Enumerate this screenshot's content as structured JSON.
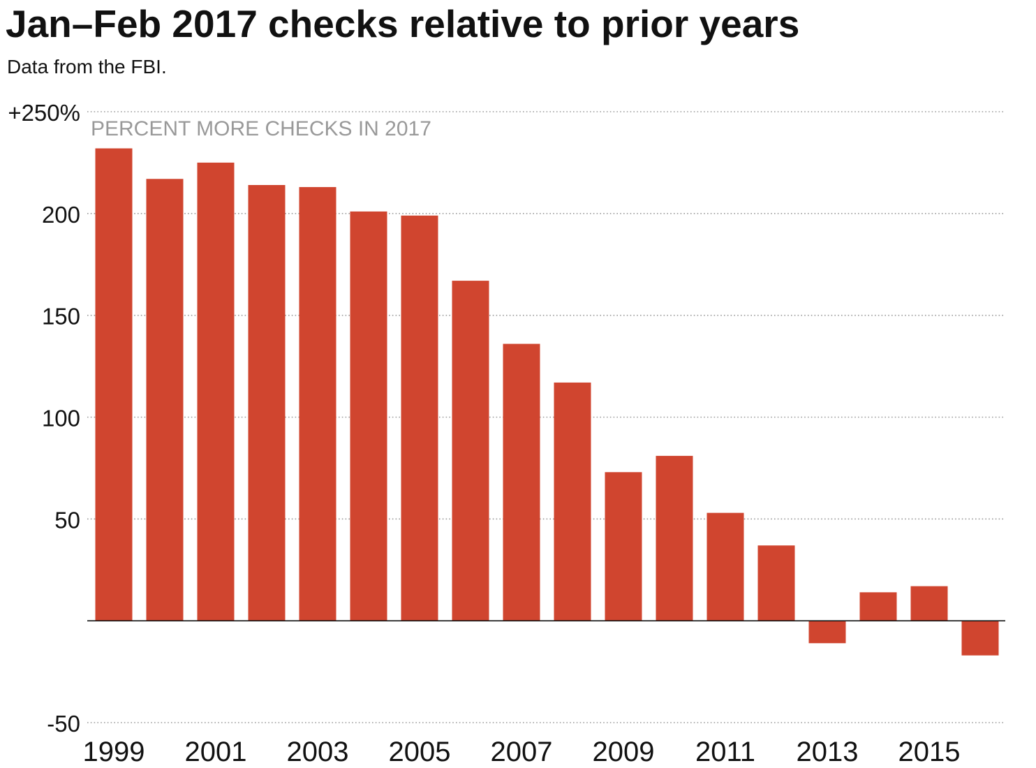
{
  "colors": {
    "bar": "#d0452f",
    "gridline": "#999999",
    "ylabel": "#999999",
    "text": "#111111",
    "baseline": "#111111"
  },
  "chart_data": {
    "type": "bar",
    "title": "Jan–Feb 2017 checks relative to prior years",
    "subtitle": "Data from the FBI.",
    "ylabel": "PERCENT MORE CHECKS IN 2017",
    "x": [
      1999,
      2000,
      2001,
      2002,
      2003,
      2004,
      2005,
      2006,
      2007,
      2008,
      2009,
      2010,
      2011,
      2012,
      2013,
      2014,
      2015,
      2016
    ],
    "values": [
      232,
      217,
      225,
      214,
      213,
      201,
      199,
      167,
      136,
      117,
      73,
      81,
      53,
      37,
      -11,
      14,
      17,
      -17
    ],
    "ylim": [
      -50,
      250
    ],
    "yticks": [
      {
        "value": 250,
        "label": "+250%"
      },
      {
        "value": 200,
        "label": "200"
      },
      {
        "value": 150,
        "label": "150"
      },
      {
        "value": 100,
        "label": "100"
      },
      {
        "value": 50,
        "label": "50"
      },
      {
        "value": -50,
        "label": "-50"
      }
    ],
    "baseline_value": 0,
    "x_tick_labels": [
      "1999",
      "2001",
      "2003",
      "2005",
      "2007",
      "2009",
      "2011",
      "2013",
      "2015"
    ],
    "grid": true,
    "legend": false
  }
}
